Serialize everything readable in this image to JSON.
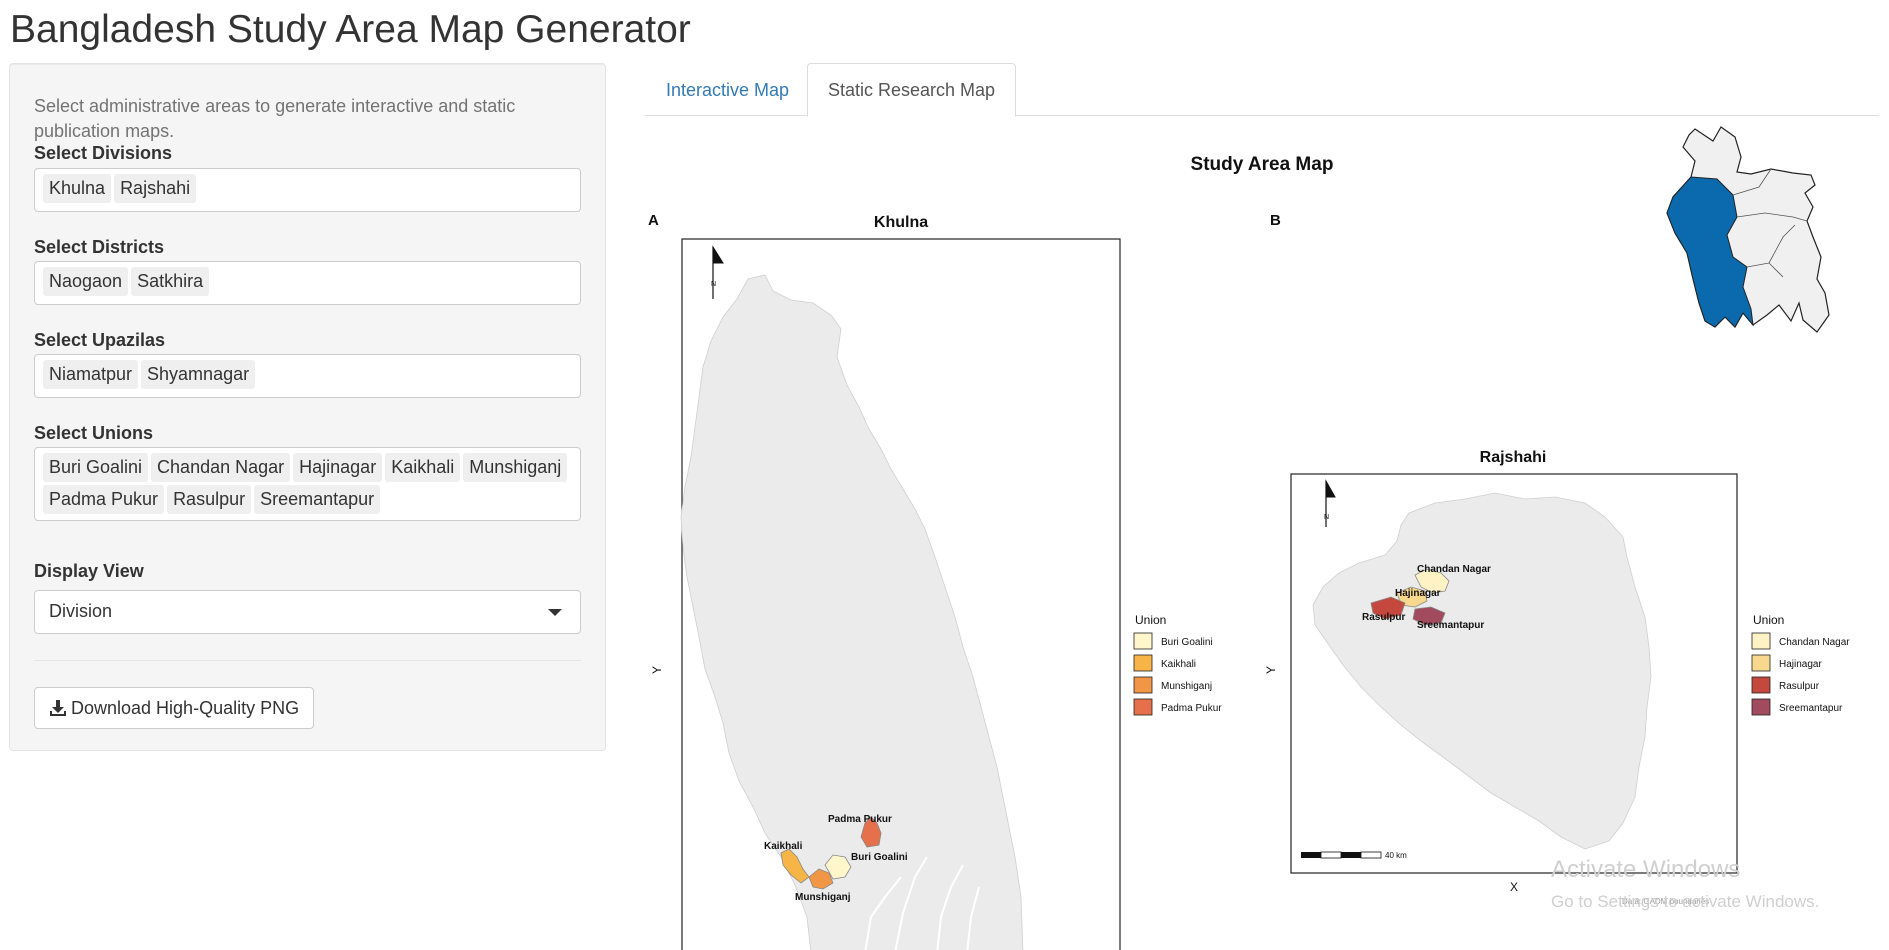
{
  "app": {
    "title": "Bangladesh Study Area Map Generator"
  },
  "sidebar": {
    "description": "Select administrative areas to generate interactive and static publication maps.",
    "divisions": {
      "label": "Select Divisions",
      "selected": [
        "Khulna",
        "Rajshahi"
      ]
    },
    "districts": {
      "label": "Select Districts",
      "selected": [
        "Naogaon",
        "Satkhira"
      ]
    },
    "upazilas": {
      "label": "Select Upazilas",
      "selected": [
        "Niamatpur",
        "Shyamnagar"
      ]
    },
    "unions": {
      "label": "Select Unions",
      "selected": [
        "Buri Goalini",
        "Chandan Nagar",
        "Hajinagar",
        "Kaikhali",
        "Munshiganj",
        "Padma Pukur",
        "Rasulpur",
        "Sreemantapur"
      ]
    },
    "display_view": {
      "label": "Display View",
      "value": "Division"
    },
    "download_label": "Download High-Quality PNG"
  },
  "tabs": [
    {
      "label": "Interactive Map",
      "active": false
    },
    {
      "label": "Static Research Map",
      "active": true
    }
  ],
  "map": {
    "title": "Study Area Map",
    "panel_a": {
      "letter": "A",
      "title": "Khulna",
      "y_label": "Y",
      "north": "N",
      "legend_title": "Union",
      "legend": [
        {
          "label": "Buri Goalini",
          "color": "#fff6cc"
        },
        {
          "label": "Kaikhali",
          "color": "#f7b547"
        },
        {
          "label": "Munshiganj",
          "color": "#f19645"
        },
        {
          "label": "Padma Pukur",
          "color": "#e5704b"
        }
      ],
      "labels": {
        "padma_pukur": "Padma Pukur",
        "kaikhali": "Kaikhali",
        "buri_goalini": "Buri Goalini",
        "munshiganj": "Munshiganj"
      }
    },
    "panel_b": {
      "letter": "B",
      "title": "Rajshahi",
      "y_label": "Y",
      "x_label": "X",
      "north": "N",
      "scale_label": "40 km",
      "caption": "Data: GADM boundaries",
      "legend_title": "Union",
      "legend": [
        {
          "label": "Chandan Nagar",
          "color": "#fff2c4"
        },
        {
          "label": "Hajinagar",
          "color": "#f8d88d"
        },
        {
          "label": "Rasulpur",
          "color": "#c5483f"
        },
        {
          "label": "Sreemantapur",
          "color": "#a24a5e"
        }
      ],
      "labels": {
        "chandan_nagar": "Chandan Nagar",
        "hajinagar": "Hajinagar",
        "rasulpur": "Rasulpur",
        "sreemantapur": "Sreemantapur"
      }
    },
    "colors": {
      "land": "#eeeeee",
      "highlight": "#0a6aad",
      "tab_link": "#337ab7"
    }
  },
  "watermark": {
    "line1": "Activate Windows",
    "line2": "Go to Settings to activate Windows."
  }
}
